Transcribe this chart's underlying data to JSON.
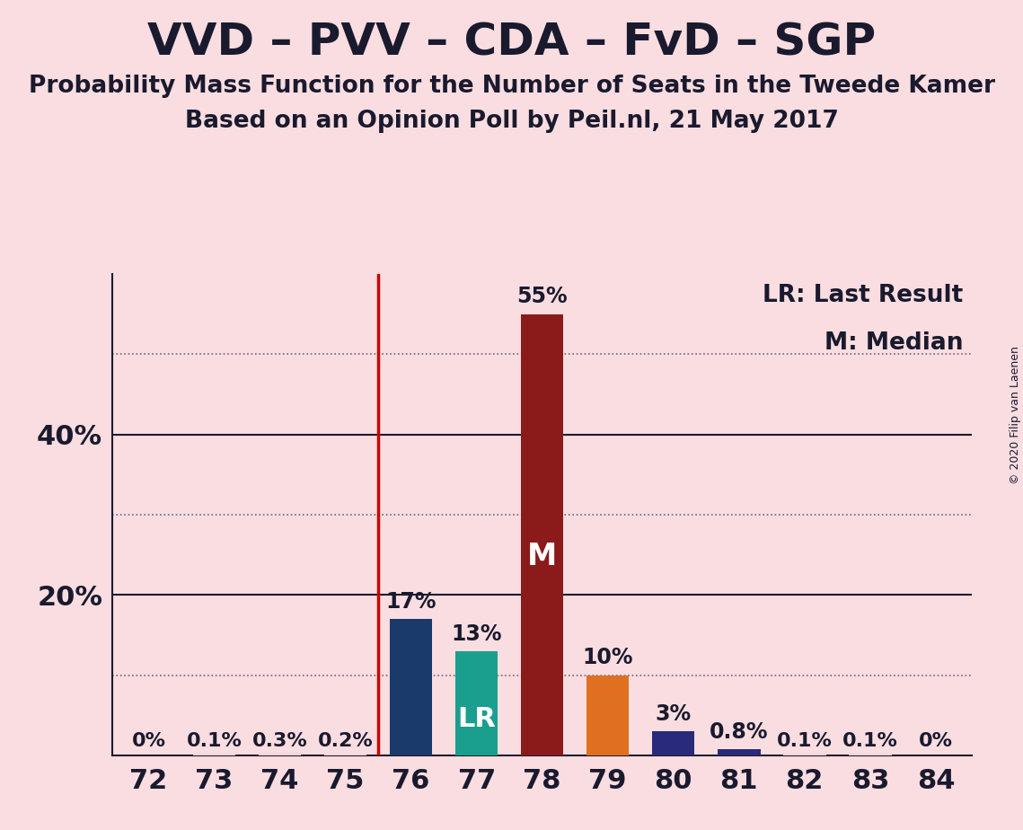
{
  "title": "VVD – PVV – CDA – FvD – SGP",
  "subtitle1": "Probability Mass Function for the Number of Seats in the Tweede Kamer",
  "subtitle2": "Based on an Opinion Poll by Peil.nl, 21 May 2017",
  "copyright": "© 2020 Filip van Laenen",
  "categories": [
    72,
    73,
    74,
    75,
    76,
    77,
    78,
    79,
    80,
    81,
    82,
    83,
    84
  ],
  "values": [
    0.0,
    0.1,
    0.3,
    0.2,
    17.0,
    13.0,
    55.0,
    10.0,
    3.0,
    0.8,
    0.1,
    0.1,
    0.0
  ],
  "labels": [
    "0%",
    "0.1%",
    "0.3%",
    "0.2%",
    "17%",
    "13%",
    "55%",
    "10%",
    "3%",
    "0.8%",
    "0.1%",
    "0.1%",
    "0%"
  ],
  "bar_colors": [
    "#f5d5d8",
    "#f5d5d8",
    "#f5d5d8",
    "#f5d5d8",
    "#1a3a6b",
    "#1a9e8e",
    "#8b1a1a",
    "#e07020",
    "#2a2a7a",
    "#2a2a7a",
    "#f5d5d8",
    "#f5d5d8",
    "#f5d5d8"
  ],
  "median_bar_idx": 6,
  "lr_bar_idx": 5,
  "median_label": "M",
  "lr_label": "LR",
  "legend_lr": "LR: Last Result",
  "legend_m": "M: Median",
  "background_color": "#f9dde0",
  "ylim": [
    0,
    60
  ],
  "solid_yticks": [
    20,
    40
  ],
  "dotted_yticks": [
    10,
    30,
    50
  ],
  "solid_ytick_labels": [
    "20%",
    "40%"
  ],
  "title_fontsize": 36,
  "subtitle_fontsize": 19,
  "axis_tick_fontsize": 22,
  "bar_label_fontsize": 17,
  "inner_label_fontsize": 24,
  "legend_fontsize": 19,
  "copyright_fontsize": 9
}
